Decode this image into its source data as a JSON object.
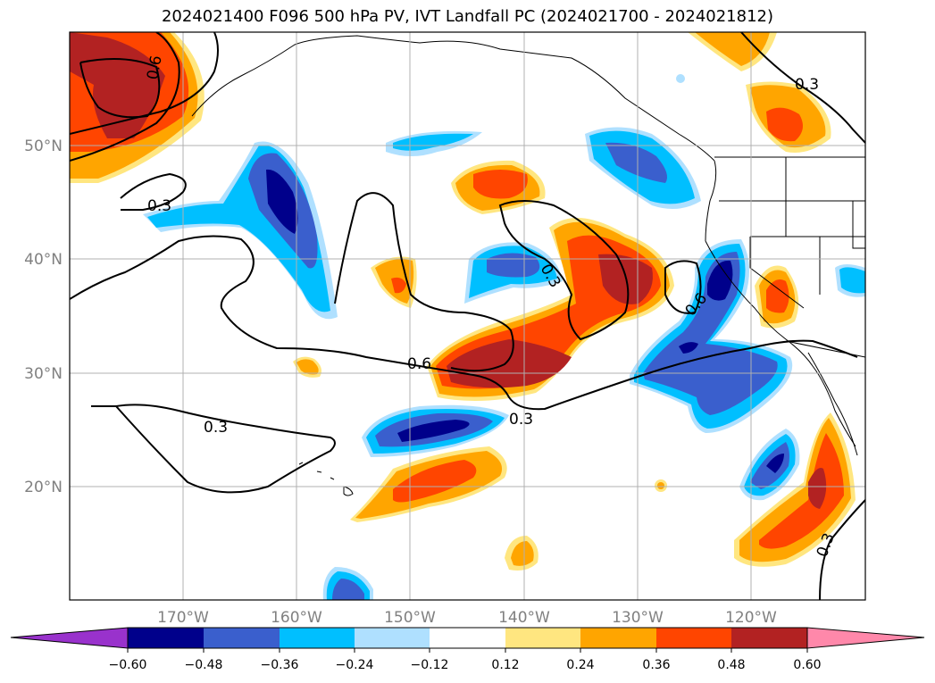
{
  "title": "2024021400 F096 500 hPa PV, IVT Landfall PC (2024021700 - 2024021812)",
  "map": {
    "lon_range": [
      -180,
      -110
    ],
    "lat_range": [
      10,
      60
    ],
    "lon_ticks": [
      "170°W",
      "160°W",
      "150°W",
      "140°W",
      "130°W",
      "120°W"
    ],
    "lat_ticks": [
      "20°N",
      "30°N",
      "40°N",
      "50°N"
    ],
    "grid": true
  },
  "contour_labels": [
    "0.3",
    "0.3",
    "0.6",
    "0.3",
    "0.3",
    "0.3",
    "0.6",
    "0.6",
    "0.3"
  ],
  "colorbar": {
    "extend": "both",
    "tick_labels": [
      "−0.60",
      "−0.48",
      "−0.36",
      "−0.24",
      "−0.12",
      "0.12",
      "0.24",
      "0.36",
      "0.48",
      "0.60"
    ],
    "colors": [
      "#9932cc",
      "#00008b",
      "#3a5fcd",
      "#00bfff",
      "#afe0ff",
      "#ffffff",
      "#ffe680",
      "#ffa500",
      "#ff4500",
      "#b22222",
      "#ff88aa"
    ]
  }
}
